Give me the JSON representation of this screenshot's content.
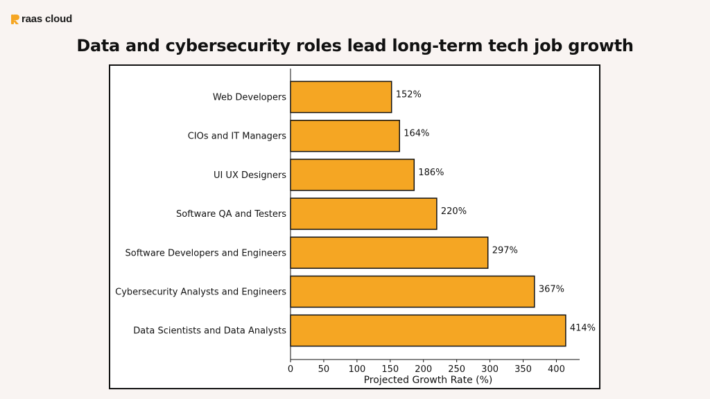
{
  "brand": {
    "name": "raas cloud",
    "accent": "#f5a623"
  },
  "page": {
    "title": "Data and cybersecurity roles lead long-term tech job growth"
  },
  "chart_data": {
    "type": "bar",
    "orientation": "horizontal",
    "title": "Data and cybersecurity roles lead long-term tech job growth",
    "xlabel": "Projected Growth Rate (%)",
    "ylabel": "",
    "categories": [
      "Web Developers",
      "CIOs and IT Managers",
      "UI UX Designers",
      "Software QA and Testers",
      "Software Developers and Engineers",
      "Cybersecurity Analysts and Engineers",
      "Data Scientists and Data Analysts"
    ],
    "values": [
      152,
      164,
      186,
      220,
      297,
      367,
      414
    ],
    "value_labels": [
      "152%",
      "164%",
      "186%",
      "220%",
      "297%",
      "367%",
      "414%"
    ],
    "xlim": [
      0,
      435
    ],
    "xticks": [
      0,
      50,
      100,
      150,
      200,
      250,
      300,
      350,
      400
    ],
    "bar_color": "#f5a623",
    "bar_edge_color": "#111111",
    "grid": false,
    "legend": "none"
  }
}
